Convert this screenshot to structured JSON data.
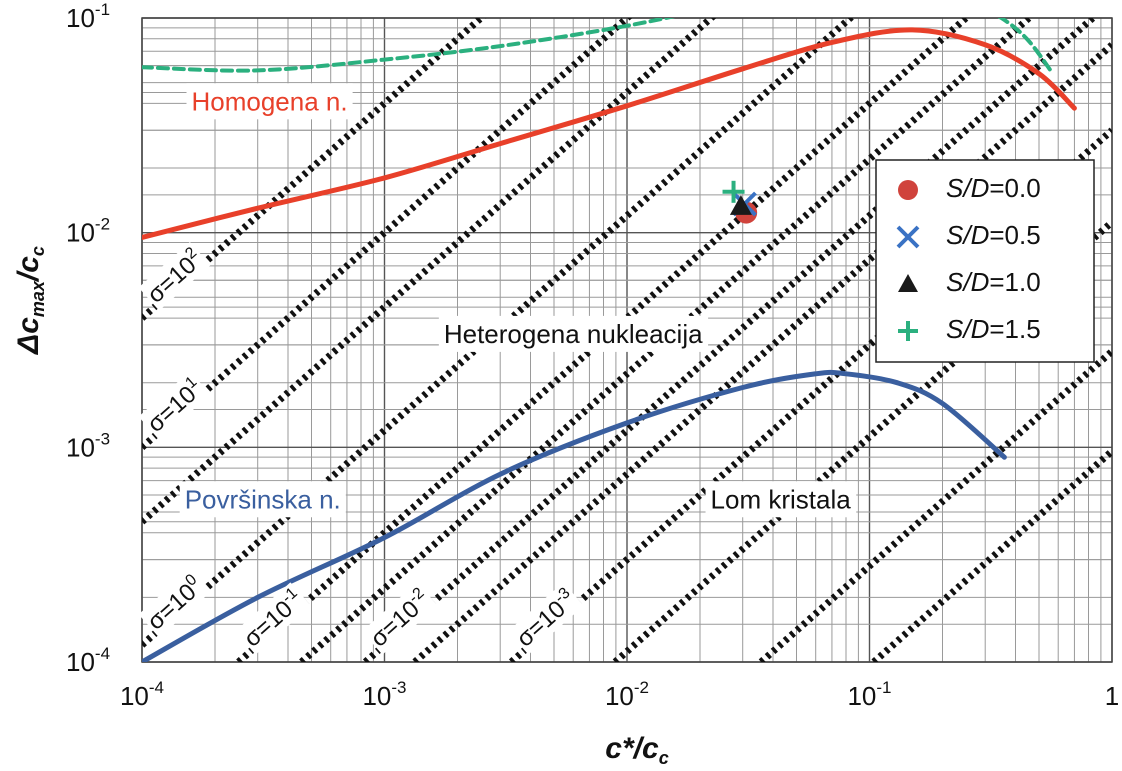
{
  "chart_data": {
    "type": "line",
    "xscale": "log",
    "yscale": "log",
    "xlim": [
      0.0001,
      1
    ],
    "ylim": [
      0.0001,
      0.1
    ],
    "grid": true,
    "xlabel": {
      "main": "c*/c",
      "sub": "c"
    },
    "ylabel": {
      "main": "Δc",
      "sub1": "max",
      "slash": "/c",
      "sub2": "c"
    },
    "xtick_labels": [
      {
        "value": 0.0001,
        "base": "10",
        "exp": "-4"
      },
      {
        "value": 0.001,
        "base": "10",
        "exp": "-3"
      },
      {
        "value": 0.01,
        "base": "10",
        "exp": "-2"
      },
      {
        "value": 0.1,
        "base": "10",
        "exp": "-1"
      },
      {
        "value": 1,
        "base": "1",
        "exp": ""
      }
    ],
    "ytick_labels": [
      {
        "value": 0.0001,
        "base": "10",
        "exp": "-4"
      },
      {
        "value": 0.001,
        "base": "10",
        "exp": "-3"
      },
      {
        "value": 0.01,
        "base": "10",
        "exp": "-2"
      },
      {
        "value": 0.1,
        "base": "10",
        "exp": "-1"
      }
    ],
    "curves": [
      {
        "id": "homogena",
        "color": "#e8402a",
        "style": "solid",
        "x": [
          0.0001,
          0.0003,
          0.001,
          0.003,
          0.01,
          0.03,
          0.07,
          0.15,
          0.3,
          0.5,
          0.7
        ],
        "y": [
          0.0095,
          0.013,
          0.018,
          0.026,
          0.039,
          0.058,
          0.077,
          0.088,
          0.075,
          0.055,
          0.038
        ]
      },
      {
        "id": "povrsinska",
        "color": "#3a5f9f",
        "style": "solid",
        "x": [
          0.0001,
          0.0003,
          0.001,
          0.003,
          0.01,
          0.03,
          0.06,
          0.08,
          0.13,
          0.2,
          0.36
        ],
        "y": [
          0.0001,
          0.0002,
          0.00038,
          0.00075,
          0.0013,
          0.0019,
          0.0022,
          0.0022,
          0.002,
          0.0016,
          0.0009
        ]
      },
      {
        "id": "upper-green",
        "color": "#2bb07f",
        "style": "dashed",
        "x": [
          0.0001,
          0.0003,
          0.001,
          0.003,
          0.01,
          0.028
        ],
        "y": [
          0.059,
          0.057,
          0.064,
          0.074,
          0.092,
          0.118
        ]
      },
      {
        "id": "upper-green-right",
        "color": "#2bb07f",
        "style": "dashed",
        "x": [
          0.26,
          0.35,
          0.45,
          0.57
        ],
        "y": [
          0.118,
          0.1,
          0.079,
          0.055
        ]
      }
    ],
    "sigma_lines": [
      {
        "base": "σ=10",
        "exp": "2",
        "intercept": 40
      },
      {
        "base": "σ=10",
        "exp": "1",
        "intercept": 10
      },
      {
        "base": "σ=10",
        "exp": "0",
        "intercept": 1.2
      },
      {
        "base": "σ=10",
        "exp": "-1",
        "intercept": 0.4
      },
      {
        "base": "σ=10",
        "exp": "-2",
        "intercept": 0.12
      },
      {
        "base": "σ=10",
        "exp": "-3",
        "intercept": 0.03
      },
      {
        "intercept": 4.5
      },
      {
        "intercept": 0.22
      },
      {
        "intercept": 0.075
      },
      {
        "intercept": 0.0112
      },
      {
        "intercept": 0.0028
      },
      {
        "intercept": 0.00096
      }
    ],
    "region_labels": [
      {
        "id": "homogena",
        "text": "Homogena n.",
        "color": "#e8402a"
      },
      {
        "id": "heterogena",
        "text": "Heterogena nukleacija",
        "color": "#111111"
      },
      {
        "id": "povrsinska",
        "text": "Površinska  n.",
        "color": "#3a5f9f"
      },
      {
        "id": "lom",
        "text": "Lom kristala",
        "color": "#111111"
      }
    ],
    "series": [
      {
        "name": "S/D=0.0",
        "marker": "circle",
        "color": "#d0433c",
        "x": 0.031,
        "y": 0.0124
      },
      {
        "name": "S/D=0.5",
        "marker": "x",
        "color": "#3a72c4",
        "x": 0.0305,
        "y": 0.0136
      },
      {
        "name": "S/D=1.0",
        "marker": "triangle",
        "color": "#1a1a1a",
        "x": 0.0295,
        "y": 0.0133
      },
      {
        "name": "S/D=1.5",
        "marker": "plus",
        "color": "#2bb07f",
        "x": 0.0275,
        "y": 0.0155
      }
    ],
    "legend": {
      "placement": "right",
      "entries": [
        {
          "prefix": "S/D",
          "suffix": "=0.0",
          "marker": "circle",
          "color": "#d0433c"
        },
        {
          "prefix": "S/D",
          "suffix": "=0.5",
          "marker": "x",
          "color": "#3a72c4"
        },
        {
          "prefix": "S/D",
          "suffix": "=1.0",
          "marker": "triangle",
          "color": "#1a1a1a"
        },
        {
          "prefix": "S/D",
          "suffix": "=1.5",
          "marker": "plus",
          "color": "#2bb07f"
        }
      ]
    }
  }
}
